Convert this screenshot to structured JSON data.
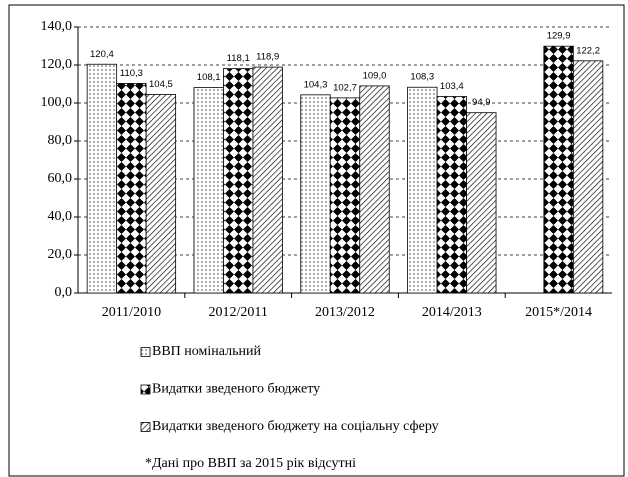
{
  "chart_data": {
    "type": "bar",
    "categories": [
      "2011/2010",
      "2012/2011",
      "2013/2012",
      "2014/2013",
      "2015*/2014"
    ],
    "series": [
      {
        "name": "ВВП номінальний",
        "color": "#000000",
        "pattern": "dots",
        "values": [
          120.4,
          108.1,
          104.3,
          108.3,
          null
        ],
        "value_labels": [
          "120,4",
          "108,1",
          "104,3",
          "108,3",
          null
        ]
      },
      {
        "name": "Видатки зведеного бюджету",
        "color": "#000000",
        "pattern": "diamonds",
        "values": [
          110.3,
          118.1,
          102.7,
          103.4,
          129.9
        ],
        "value_labels": [
          "110,3",
          "118,1",
          "102,7",
          "103,4",
          "129,9"
        ]
      },
      {
        "name": "Видатки зведеного бюджету на соціальну сферу",
        "color": "#000000",
        "pattern": "hatch",
        "values": [
          104.5,
          118.9,
          109.0,
          94.9,
          122.2
        ],
        "value_labels": [
          "104,5",
          "118,9",
          "109,0",
          "94,9",
          "122,2"
        ]
      }
    ],
    "annotation": "*Дані про ВВП за 2015 рік відсутні",
    "ylim": [
      0,
      140
    ],
    "yticks": [
      {
        "value": 0,
        "label": "0,0"
      },
      {
        "value": 20,
        "label": "20,0"
      },
      {
        "value": 40,
        "label": "40,0"
      },
      {
        "value": 60,
        "label": "60,0"
      },
      {
        "value": 80,
        "label": "80,0"
      },
      {
        "value": 100,
        "label": "100,0"
      },
      {
        "value": 120,
        "label": "120,0"
      },
      {
        "value": 140,
        "label": "140,0"
      }
    ],
    "grid": true
  }
}
